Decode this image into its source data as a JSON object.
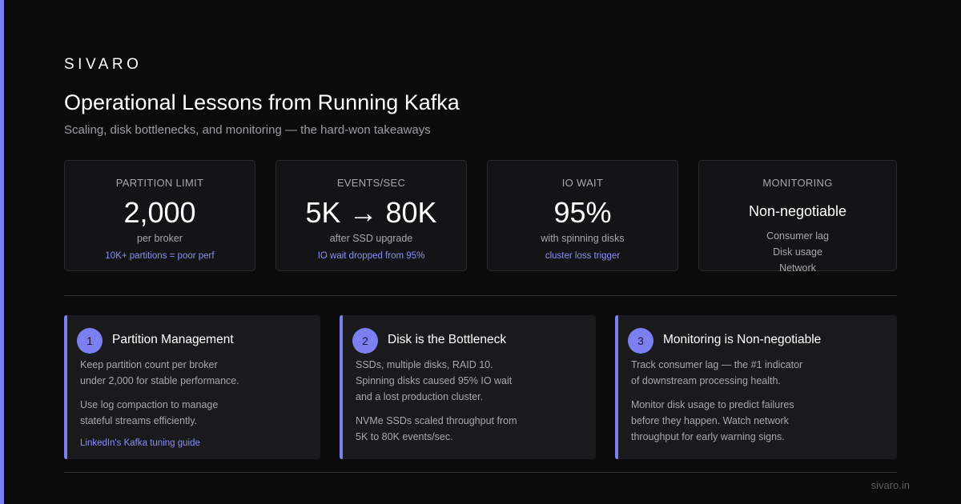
{
  "brand": "SIVARO",
  "title": "Operational Lessons from Running Kafka",
  "subtitle": "Scaling, disk bottlenecks, and monitoring — the hard-won takeaways",
  "colors": {
    "accent": "#7b7ff0",
    "background": "#0b0b0c",
    "card": "#1a1a1d",
    "note": "#8a8ef5"
  },
  "stats": [
    {
      "label": "PARTITION LIMIT",
      "value": "2,000",
      "desc": "per broker",
      "note": "10K+ partitions = poor perf"
    },
    {
      "label": "EVENTS/SEC",
      "value": "5K → 80K",
      "desc": "after SSD upgrade",
      "note": "IO wait dropped from 95%"
    },
    {
      "label": "IO WAIT",
      "value": "95%",
      "desc": "with spinning disks",
      "note": "cluster loss trigger"
    },
    {
      "label": "MONITORING",
      "value": "Non-negotiable",
      "list": [
        "Consumer lag",
        "Disk usage",
        "Network"
      ]
    }
  ],
  "cards": [
    {
      "number": "1",
      "title": "Partition Management",
      "para1": [
        "Keep partition count per broker",
        "under 2,000 for stable performance."
      ],
      "para2": [
        "Use log compaction to manage",
        "stateful streams efficiently."
      ],
      "link": "LinkedIn's Kafka tuning guide"
    },
    {
      "number": "2",
      "title": "Disk is the Bottleneck",
      "para1": [
        "SSDs, multiple disks, RAID 10.",
        "Spinning disks caused 95% IO wait",
        "and a lost production cluster."
      ],
      "para2": [
        "NVMe SSDs scaled throughput from",
        "5K to 80K events/sec."
      ]
    },
    {
      "number": "3",
      "title": "Monitoring is Non-negotiable",
      "para1": [
        "Track consumer lag — the #1 indicator",
        "of downstream processing health."
      ],
      "para2": [
        "Monitor disk usage to predict failures",
        "before they happen. Watch network",
        "throughput for early warning signs."
      ]
    }
  ],
  "footer": "sivaro.in"
}
